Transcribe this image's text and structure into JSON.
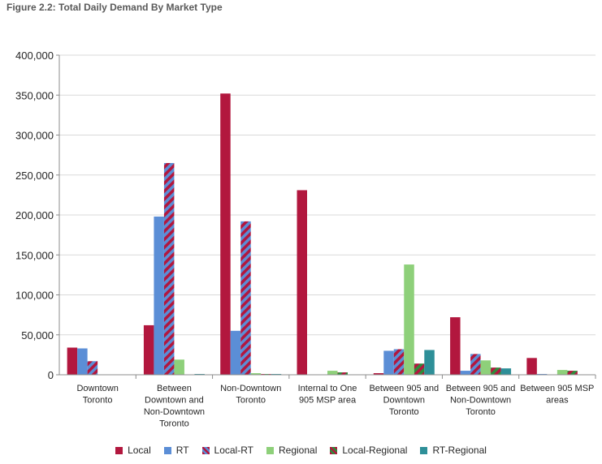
{
  "chart_data": {
    "type": "bar",
    "title": "Figure 2.2: Total Daily Demand By Market Type",
    "xlabel": "",
    "ylabel": "",
    "ylim": [
      0,
      400000
    ],
    "yticks": [
      "0",
      "50,000",
      "100,000",
      "150,000",
      "200,000",
      "250,000",
      "300,000",
      "350,000",
      "400,000"
    ],
    "grid": true,
    "legend_position": "bottom",
    "categories": [
      [
        "Downtown",
        "Toronto"
      ],
      [
        "Between",
        "Downtown and",
        "Non-Downtown",
        "Toronto"
      ],
      [
        "Non-Downtown",
        "Toronto"
      ],
      [
        "Internal to One",
        "905 MSP area"
      ],
      [
        "Between 905 and",
        "Downtown",
        "Toronto"
      ],
      [
        "Between 905 and",
        "Non-Downtown",
        "Toronto"
      ],
      [
        "Between 905 MSP",
        "areas"
      ]
    ],
    "series": [
      {
        "name": "Local",
        "color": "#b2173e",
        "pattern": "solid",
        "values": [
          34000,
          62000,
          352000,
          231000,
          2000,
          72000,
          21000
        ]
      },
      {
        "name": "RT",
        "color": "#5b8ed6",
        "pattern": "solid",
        "values": [
          33000,
          198000,
          55000,
          0,
          30000,
          5000,
          1000
        ]
      },
      {
        "name": "Local-RT",
        "color": "#b2173e",
        "color2": "#5b8ed6",
        "pattern": "stripe",
        "values": [
          17000,
          265000,
          192000,
          0,
          32000,
          26000,
          0
        ]
      },
      {
        "name": "Regional",
        "color": "#8ed07a",
        "pattern": "solid",
        "values": [
          0,
          19000,
          2000,
          5000,
          138000,
          18000,
          6000
        ]
      },
      {
        "name": "Local-Regional",
        "color": "#b2173e",
        "color2": "#2e8b3a",
        "pattern": "stripe",
        "values": [
          0,
          0,
          1000,
          3000,
          14000,
          9000,
          5000
        ]
      },
      {
        "name": "RT-Regional",
        "color": "#2e8f98",
        "pattern": "solid",
        "values": [
          0,
          1000,
          1000,
          0,
          31000,
          8000,
          0
        ]
      }
    ]
  }
}
